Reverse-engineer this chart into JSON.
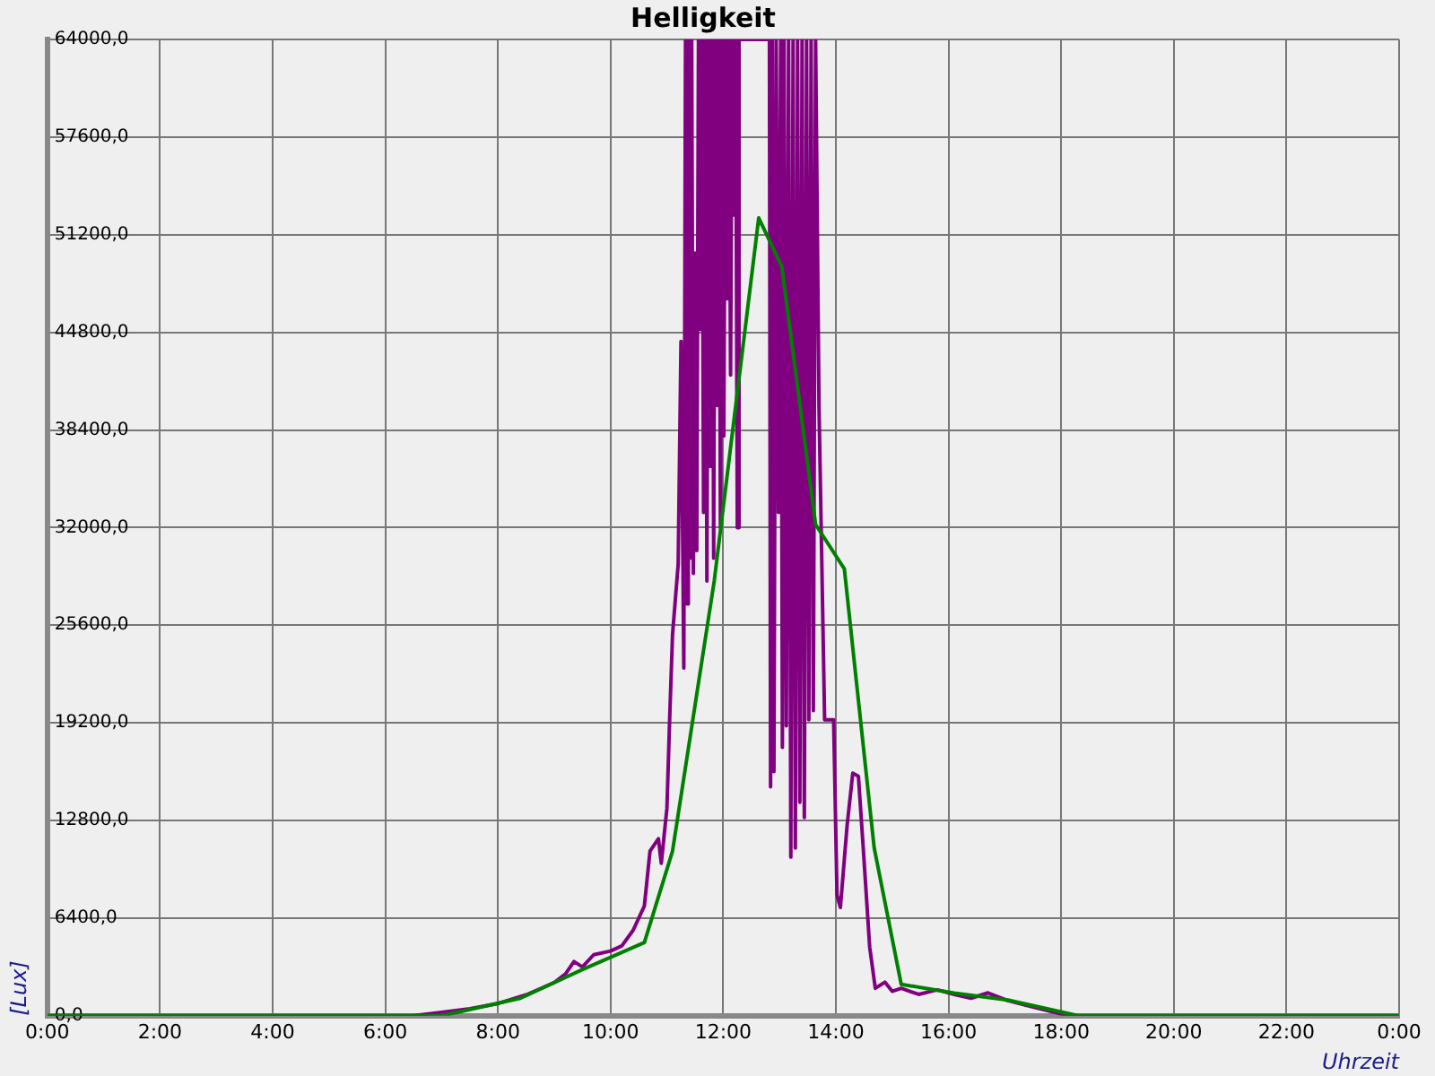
{
  "chart_data": {
    "type": "line",
    "title": "Helligkeit",
    "xlabel": "Uhrzeit",
    "ylabel": "[Lux]",
    "xlim": [
      0,
      24
    ],
    "xticks": [
      {
        "value": 0,
        "label": "0:00"
      },
      {
        "value": 2,
        "label": "2:00"
      },
      {
        "value": 4,
        "label": "4:00"
      },
      {
        "value": 6,
        "label": "6:00"
      },
      {
        "value": 8,
        "label": "8:00"
      },
      {
        "value": 10,
        "label": "10:00"
      },
      {
        "value": 12,
        "label": "12:00"
      },
      {
        "value": 14,
        "label": "14:00"
      },
      {
        "value": 16,
        "label": "16:00"
      },
      {
        "value": 18,
        "label": "18:00"
      },
      {
        "value": 20,
        "label": "20:00"
      },
      {
        "value": 22,
        "label": "22:00"
      },
      {
        "value": 24,
        "label": "0:00"
      }
    ],
    "ylim": [
      0,
      64000
    ],
    "yticks": [
      {
        "value": 0,
        "label": "0,0"
      },
      {
        "value": 6400,
        "label": "6400,0"
      },
      {
        "value": 12800,
        "label": "12800,0"
      },
      {
        "value": 19200,
        "label": "19200,0"
      },
      {
        "value": 25600,
        "label": "25600,0"
      },
      {
        "value": 32000,
        "label": "32000,0"
      },
      {
        "value": 38400,
        "label": "38400,0"
      },
      {
        "value": 44800,
        "label": "44800,0"
      },
      {
        "value": 51200,
        "label": "51200,0"
      },
      {
        "value": 57600,
        "label": "57600,0"
      },
      {
        "value": 64000,
        "label": "64000,0"
      }
    ],
    "grid": true,
    "legend": false,
    "marker": "none",
    "line_style": "solid",
    "series": [
      {
        "color": "#800080",
        "x": [
          0,
          6.5,
          7,
          7.5,
          8,
          8.5,
          9,
          9.2,
          9.35,
          9.5,
          9.7,
          10,
          10.2,
          10.4,
          10.6,
          10.7,
          10.85,
          10.9,
          11,
          11.05,
          11.1,
          11.2,
          11.25,
          11.3,
          11.33,
          11.36,
          11.38,
          11.41,
          11.44,
          11.47,
          11.5,
          11.53,
          11.56,
          11.59,
          11.62,
          11.65,
          11.68,
          11.71,
          11.74,
          11.77,
          11.8,
          11.83,
          11.86,
          11.89,
          11.92,
          11.95,
          11.98,
          12.01,
          12.04,
          12.07,
          12.1,
          12.13,
          12.16,
          12.19,
          12.22,
          12.25,
          12.28,
          12.4,
          12.82,
          12.84,
          12.87,
          12.9,
          12.94,
          12.98,
          13.02,
          13.05,
          13.08,
          13.12,
          13.16,
          13.2,
          13.24,
          13.28,
          13.32,
          13.36,
          13.4,
          13.44,
          13.48,
          13.52,
          13.56,
          13.6,
          13.64,
          13.7,
          13.8,
          13.96,
          14.02,
          14.08,
          14.2,
          14.3,
          14.4,
          14.5,
          14.6,
          14.7,
          14.87,
          15,
          15.16,
          15.47,
          15.8,
          16.1,
          16.4,
          16.7,
          17.05,
          17.5,
          18,
          18.3,
          24
        ],
        "values": [
          0,
          0,
          230,
          460,
          800,
          1370,
          2180,
          2750,
          3550,
          3200,
          4000,
          4240,
          4580,
          5600,
          7200,
          10800,
          11600,
          10000,
          13600,
          19600,
          25000,
          29600,
          44200,
          22800,
          64000,
          27000,
          64000,
          30000,
          64000,
          29000,
          50000,
          30500,
          64000,
          45000,
          64000,
          33000,
          64000,
          28500,
          64000,
          36000,
          64000,
          30000,
          64000,
          40000,
          64000,
          32000,
          64000,
          38000,
          64000,
          47000,
          64000,
          42000,
          64000,
          52500,
          64000,
          32000,
          64000,
          64000,
          64000,
          15000,
          64000,
          16000,
          64000,
          33000,
          64000,
          17600,
          64000,
          19000,
          64000,
          10400,
          64000,
          11000,
          64000,
          14000,
          64000,
          13000,
          64000,
          19400,
          64000,
          20000,
          64000,
          40000,
          19400,
          19400,
          7900,
          7100,
          12500,
          15900,
          15700,
          10200,
          4500,
          1800,
          2200,
          1600,
          1800,
          1400,
          1700,
          1400,
          1150,
          1500,
          1000,
          570,
          120,
          0,
          0
        ]
      },
      {
        "color": "#008000",
        "x": [
          0,
          6.5,
          7.0,
          8.4,
          9.47,
          10.6,
          11.1,
          11.84,
          12.63,
          13.04,
          13.64,
          14.15,
          14.68,
          15.16,
          16.1,
          17.05,
          17.75,
          18.3,
          24
        ],
        "values": [
          0,
          0,
          0,
          1150,
          2980,
          4800,
          10800,
          28500,
          52300,
          49100,
          32200,
          29300,
          11000,
          2060,
          1490,
          1030,
          460,
          0,
          0
        ]
      }
    ]
  }
}
